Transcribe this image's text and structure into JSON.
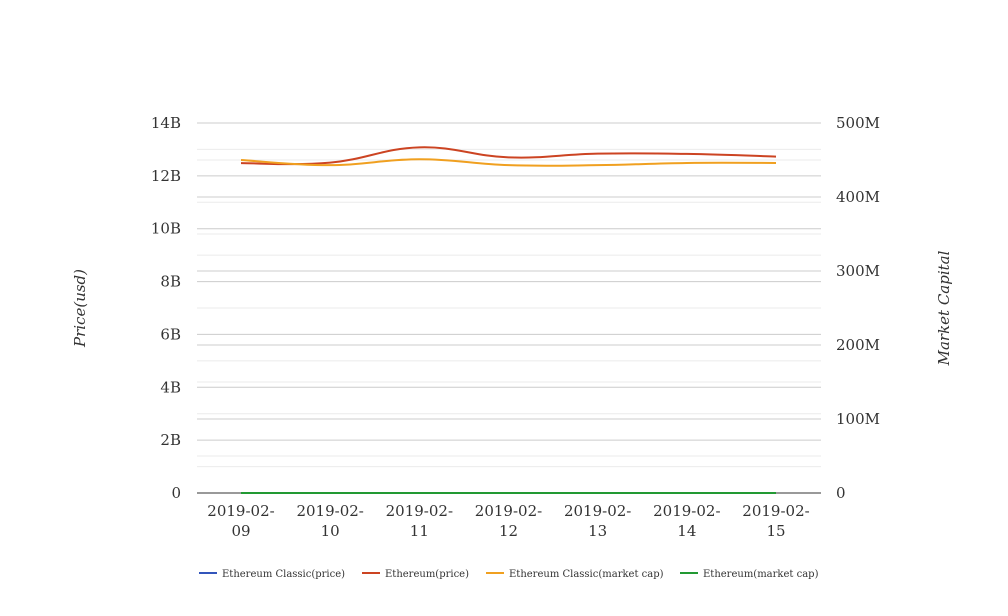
{
  "chart_data": {
    "type": "line",
    "categories": [
      "2019-02-09",
      "2019-02-10",
      "2019-02-11",
      "2019-02-12",
      "2019-02-13",
      "2019-02-14",
      "2019-02-15"
    ],
    "category_labels": [
      [
        "2019-02-",
        "09"
      ],
      [
        "2019-02-",
        "10"
      ],
      [
        "2019-02-",
        "11"
      ],
      [
        "2019-02-",
        "12"
      ],
      [
        "2019-02-",
        "13"
      ],
      [
        "2019-02-",
        "14"
      ],
      [
        "2019-02-",
        "15"
      ]
    ],
    "ylabel_left": "Price(usd)",
    "ylabel_right": "Market Capital",
    "left_axis": {
      "ylim": [
        0,
        14000000000
      ],
      "ticks": [
        0,
        2000000000,
        4000000000,
        6000000000,
        8000000000,
        10000000000,
        12000000000,
        14000000000
      ],
      "tick_labels": [
        "0",
        "2B",
        "4B",
        "6B",
        "8B",
        "10B",
        "12B",
        "14B"
      ]
    },
    "right_axis": {
      "ylim": [
        0,
        500000000
      ],
      "ticks": [
        0,
        100000000,
        200000000,
        300000000,
        400000000,
        500000000
      ],
      "tick_labels": [
        "0",
        "100M",
        "200M",
        "300M",
        "400M",
        "500M"
      ]
    },
    "grid": true,
    "legend_position": "bottom",
    "series": [
      {
        "name": "Ethereum Classic(price)",
        "color": "#3355bb",
        "axis": "left",
        "values": [
          4.1,
          4.2,
          4.3,
          4.2,
          4.2,
          4.2,
          4.2
        ]
      },
      {
        "name": "Ethereum(price)",
        "color": "#cc4422",
        "axis": "left",
        "values": [
          12480000000,
          12500000000,
          13080000000,
          12700000000,
          12840000000,
          12830000000,
          12730000000
        ]
      },
      {
        "name": "Ethereum Classic(market cap)",
        "color": "#f0a020",
        "axis": "right",
        "values": [
          450000000,
          443000000,
          451000000,
          443000000,
          443000000,
          446000000,
          446000000
        ]
      },
      {
        "name": "Ethereum(market cap)",
        "color": "#229933",
        "axis": "left",
        "values": [
          118,
          119,
          125,
          121,
          122,
          122,
          121
        ]
      }
    ]
  }
}
